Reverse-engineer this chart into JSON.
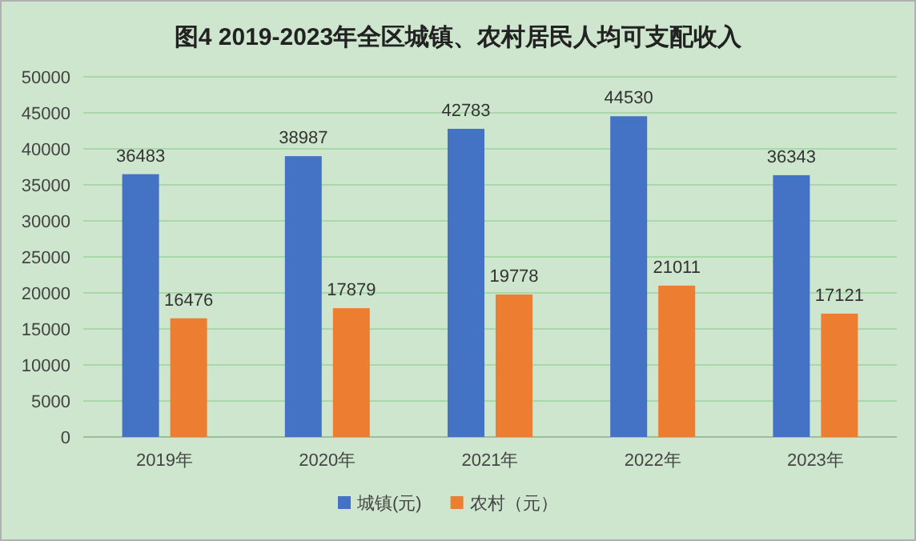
{
  "chart_data": {
    "type": "bar",
    "title": "图4 2019-2023年全区城镇、农村居民人均可支配收入",
    "categories": [
      "2019年",
      "2020年",
      "2021年",
      "2022年",
      "2023年"
    ],
    "series": [
      {
        "name": "城镇(元)",
        "color": "#4472c4",
        "values": [
          36483,
          38987,
          42783,
          44530,
          36343
        ]
      },
      {
        "name": "农村（元）",
        "color": "#ed7d31",
        "values": [
          16476,
          17879,
          19778,
          21011,
          17121
        ]
      }
    ],
    "ylim": [
      0,
      50000
    ],
    "yticks": [
      0,
      5000,
      10000,
      15000,
      20000,
      25000,
      30000,
      35000,
      40000,
      45000,
      50000
    ],
    "grid": "y",
    "legend": "bottom",
    "data_labels": true
  }
}
